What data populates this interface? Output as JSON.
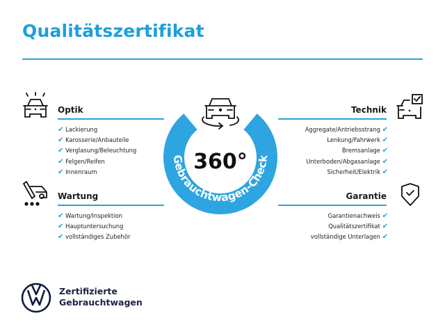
{
  "title": "Qualitätszertifikat",
  "colors": {
    "accent": "#1d9fd9",
    "ring": "#2ea5e0",
    "brand_dark": "#0f1a3c"
  },
  "center": {
    "big_text": "360°",
    "arc_text": "Gebrauchtwagen-Check",
    "icon": "car-rotate-icon"
  },
  "sections": {
    "optik": {
      "heading": "Optik",
      "icon": "car-lights-icon",
      "items": [
        "Lackierung",
        "Karosserie/Anbauteile",
        "Verglasung/Beleuchtung",
        "Felgen/Reifen",
        "Innenraum"
      ]
    },
    "wartung": {
      "heading": "Wartung",
      "icon": "service-cart-icon",
      "items": [
        "Wartung/Inspektion",
        "Hauptuntersuchung",
        "vollständiges Zubehör"
      ]
    },
    "technik": {
      "heading": "Technik",
      "icon": "car-checkbox-icon",
      "items": [
        "Aggregate/Antriebsstrang",
        "Lenkung/Fahrwerk",
        "Bremsanlage",
        "Unterboden/Abgasanlage",
        "Sicherheit/Elektrik"
      ]
    },
    "garantie": {
      "heading": "Garantie",
      "icon": "shield-check-icon",
      "items": [
        "Garantienachweis",
        "Qualitätszertifikat",
        "vollständige Unterlagen"
      ]
    }
  },
  "check_glyph": "✔",
  "footer": {
    "line1": "Zertifizierte",
    "line2": "Gebrauchtwagen",
    "logo": "vw-logo"
  }
}
